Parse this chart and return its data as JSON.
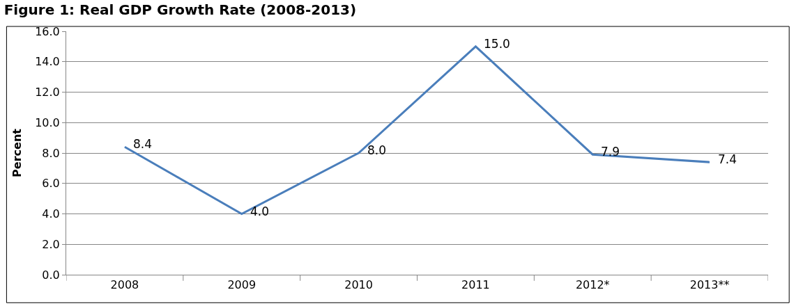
{
  "chart_data": {
    "type": "line",
    "title": "Figure 1: Real GDP Growth Rate (2008-2013)",
    "ylabel": "Percent",
    "categories": [
      "2008",
      "2009",
      "2010",
      "2011",
      "2012*",
      "2013**"
    ],
    "series": [
      {
        "color": "#4a7ebb",
        "values": [
          8.4,
          4.0,
          8.0,
          15.0,
          7.9,
          7.4
        ],
        "value_labels": [
          "8.4",
          "4.0",
          "8.0",
          "15.0",
          "7.9",
          "7.4"
        ]
      }
    ],
    "ylim": [
      0,
      16
    ],
    "yticks": [
      {
        "value": 0,
        "label": "0.0"
      },
      {
        "value": 2,
        "label": "2.0"
      },
      {
        "value": 4,
        "label": "4.0"
      },
      {
        "value": 6,
        "label": "6.0"
      },
      {
        "value": 8,
        "label": "8.0"
      },
      {
        "value": 10,
        "label": "10.0"
      },
      {
        "value": 12,
        "label": "12.0"
      },
      {
        "value": 14,
        "label": "14.0"
      },
      {
        "value": 16,
        "label": "16.0"
      }
    ],
    "grid": "y",
    "marker": "none",
    "line_style": "solid"
  }
}
